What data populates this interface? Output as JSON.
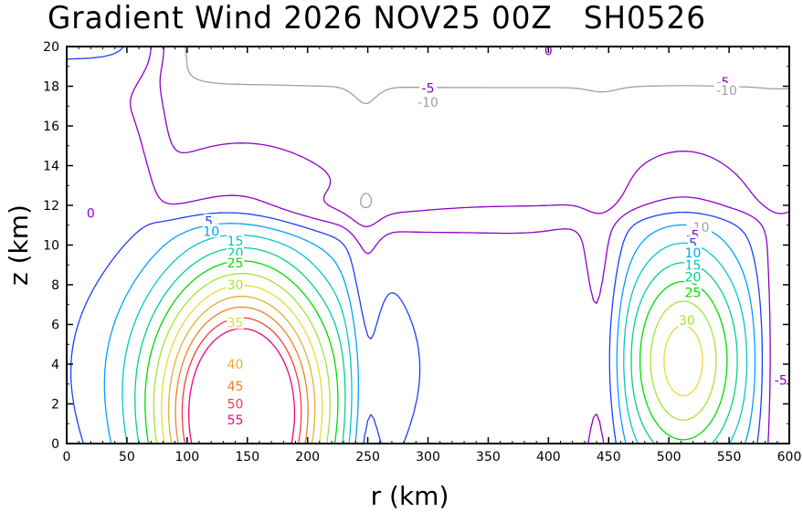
{
  "title": "Gradient Wind 2026 NOV25 00Z   SH0526",
  "chart_data": {
    "type": "contour",
    "title": "Gradient Wind 2026 NOV25 00Z   SH0526",
    "xlabel": "r (km)",
    "ylabel": "z (km)",
    "xlim": [
      0,
      600
    ],
    "ylim": [
      0,
      20
    ],
    "x_ticks": [
      0,
      50,
      100,
      150,
      200,
      250,
      300,
      350,
      400,
      450,
      500,
      550,
      600
    ],
    "y_ticks": [
      0,
      2,
      4,
      6,
      8,
      10,
      12,
      14,
      16,
      18,
      20
    ],
    "grid": false,
    "contours": [
      {
        "level": -10,
        "color": "#a0a0a0",
        "dashed": true
      },
      {
        "level": -5,
        "color": "#8c00c8",
        "dashed": true
      },
      {
        "level": 0,
        "color": "#8c00c8",
        "dashed": false
      },
      {
        "level": 5,
        "color": "#1e3cff",
        "dashed": false
      },
      {
        "level": 10,
        "color": "#00a0ff",
        "dashed": false
      },
      {
        "level": 15,
        "color": "#00c8c8",
        "dashed": false
      },
      {
        "level": 20,
        "color": "#00d28c",
        "dashed": false
      },
      {
        "level": 25,
        "color": "#00dc00",
        "dashed": false
      },
      {
        "level": 30,
        "color": "#a0e632",
        "dashed": false
      },
      {
        "level": 35,
        "color": "#e6dc32",
        "dashed": false
      },
      {
        "level": 40,
        "color": "#e6af2d",
        "dashed": false
      },
      {
        "level": 45,
        "color": "#f08228",
        "dashed": false
      },
      {
        "level": 50,
        "color": "#fa3c3c",
        "dashed": false
      },
      {
        "level": 55,
        "color": "#f00082",
        "dashed": false
      }
    ],
    "labels": [
      {
        "text": "0",
        "x": 20,
        "z": 11.6,
        "level": 0
      },
      {
        "text": "5",
        "x": 118,
        "z": 11.2,
        "level": 5
      },
      {
        "text": "10",
        "x": 120,
        "z": 10.7,
        "level": 10
      },
      {
        "text": "15",
        "x": 140,
        "z": 10.2,
        "level": 15
      },
      {
        "text": "20",
        "x": 140,
        "z": 9.6,
        "level": 20
      },
      {
        "text": "25",
        "x": 140,
        "z": 9.1,
        "level": 25
      },
      {
        "text": "30",
        "x": 140,
        "z": 8.0,
        "level": 30
      },
      {
        "text": "35",
        "x": 140,
        "z": 6.1,
        "level": 35
      },
      {
        "text": "40",
        "x": 140,
        "z": 4.0,
        "level": 40
      },
      {
        "text": "45",
        "x": 140,
        "z": 2.9,
        "level": 45
      },
      {
        "text": "50",
        "x": 140,
        "z": 2.0,
        "level": 50
      },
      {
        "text": "55",
        "x": 140,
        "z": 1.2,
        "level": 55
      },
      {
        "text": "0",
        "x": 400,
        "z": 19.8,
        "level": 0
      },
      {
        "text": "-5",
        "x": 300,
        "z": 17.9,
        "level": -5
      },
      {
        "text": "-10",
        "x": 300,
        "z": 17.2,
        "level": -10
      },
      {
        "text": "-5",
        "x": 545,
        "z": 18.2,
        "level": -5
      },
      {
        "text": "-10",
        "x": 548,
        "z": 17.8,
        "level": -10
      },
      {
        "text": "-10",
        "x": 525,
        "z": 10.9,
        "level": -10
      },
      {
        "text": "-5",
        "x": 520,
        "z": 10.5,
        "level": -5
      },
      {
        "text": "5",
        "x": 520,
        "z": 10.1,
        "level": 5
      },
      {
        "text": "10",
        "x": 520,
        "z": 9.6,
        "level": 10
      },
      {
        "text": "15",
        "x": 520,
        "z": 9.0,
        "level": 15
      },
      {
        "text": "20",
        "x": 520,
        "z": 8.4,
        "level": 20
      },
      {
        "text": "25",
        "x": 520,
        "z": 7.6,
        "level": 25
      },
      {
        "text": "30",
        "x": 515,
        "z": 6.2,
        "level": 30
      },
      {
        "text": "-5",
        "x": 593,
        "z": 3.2,
        "level": -5
      }
    ]
  }
}
